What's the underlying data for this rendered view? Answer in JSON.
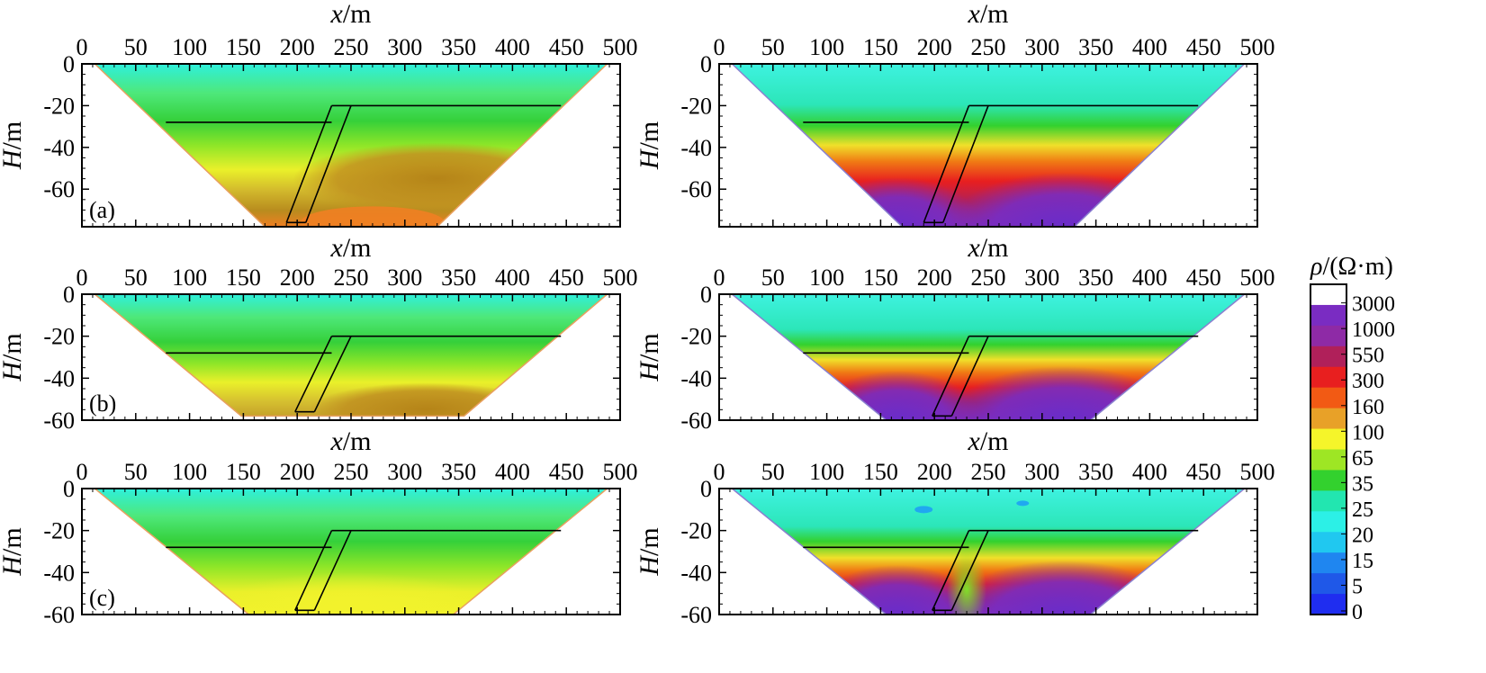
{
  "figure": {
    "panels": [
      {
        "id": "a-left",
        "column": "left",
        "row": 1,
        "label": "(a)",
        "depth_max": 78,
        "depth_ticks": [
          0,
          -20,
          -40,
          -60
        ],
        "data_depth_max": 78
      },
      {
        "id": "a-right",
        "column": "right",
        "row": 1,
        "label": "",
        "depth_max": 78,
        "depth_ticks": [
          0,
          -20,
          -40,
          -60
        ],
        "data_depth_max": 78
      },
      {
        "id": "b-left",
        "column": "left",
        "row": 2,
        "label": "(b)",
        "depth_max": 60,
        "depth_ticks": [
          0,
          -20,
          -40,
          -60
        ],
        "data_depth_max": 58
      },
      {
        "id": "b-right",
        "column": "right",
        "row": 2,
        "label": "",
        "depth_max": 60,
        "depth_ticks": [
          0,
          -20,
          -40,
          -60
        ],
        "data_depth_max": 60
      },
      {
        "id": "c-left",
        "column": "left",
        "row": 3,
        "label": "(c)",
        "depth_max": 60,
        "depth_ticks": [
          0,
          -20,
          -40,
          -60
        ],
        "data_depth_max": 60
      },
      {
        "id": "c-right",
        "column": "right",
        "row": 3,
        "label": "",
        "depth_max": 60,
        "depth_ticks": [
          0,
          -20,
          -40,
          -60
        ],
        "data_depth_max": 60
      }
    ],
    "x_label_var": "x",
    "x_label_unit": "/m",
    "y_label_var": "H",
    "y_label_unit": "/m"
  },
  "chart_data": {
    "type": "heatmap",
    "title": "",
    "xlabel": "x/m",
    "ylabel": "H/m",
    "x_ticks": [
      0,
      50,
      100,
      150,
      200,
      250,
      300,
      350,
      400,
      450,
      500
    ],
    "xlim": [
      0,
      500
    ],
    "model": {
      "upper_interface_left_x": [
        78,
        232
      ],
      "upper_interface_left_depth": -28,
      "upper_interface_right_x": [
        250,
        445
      ],
      "upper_interface_right_depth": -20,
      "fault_top_x": [
        232,
        250
      ],
      "fault_bottom_x": [
        190,
        208
      ]
    },
    "colorbar": {
      "title_var": "ρ",
      "title_unit": "/(Ω·m)",
      "levels": [
        "3000",
        "1000",
        "550",
        "300",
        "160",
        "100",
        "65",
        "35",
        "25",
        "20",
        "15",
        "5",
        "0"
      ],
      "colors": [
        "#ffffff",
        "#7a2cc2",
        "#8e2aa6",
        "#b0205a",
        "#e81f1f",
        "#f25a14",
        "#e8a128",
        "#f5f52a",
        "#9ee624",
        "#33d12e",
        "#22e6b0",
        "#2cf0e6",
        "#20c8f0",
        "#1f86f0",
        "#1f58e8",
        "#1f2df0"
      ]
    }
  }
}
